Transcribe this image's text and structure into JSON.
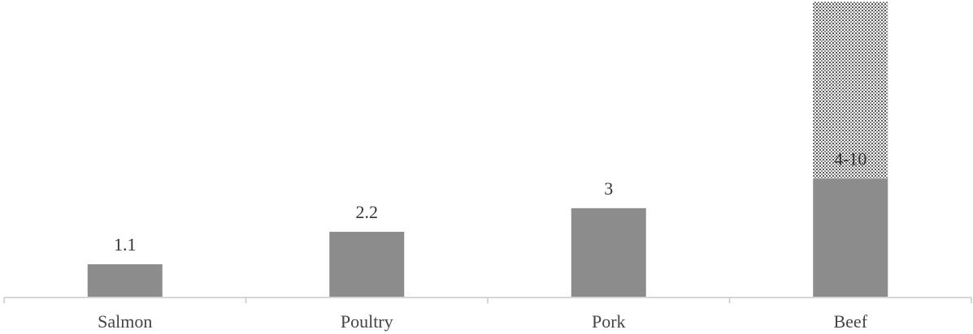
{
  "chart_data": {
    "type": "bar",
    "categories": [
      "Salmon",
      "Poultry",
      "Pork",
      "Beef"
    ],
    "values": [
      1.1,
      2.2,
      3,
      4
    ],
    "range_max": [
      null,
      null,
      null,
      10
    ],
    "data_labels": [
      "1.1",
      "2.2",
      "3",
      "4-10"
    ],
    "title": "",
    "xlabel": "",
    "ylabel": "",
    "ylim": [
      0,
      10
    ],
    "grid": false,
    "legend": "none",
    "colors": {
      "bar": "#8c8c8c",
      "range": "#c8c8c8",
      "axis": "#c8c8c8"
    }
  }
}
